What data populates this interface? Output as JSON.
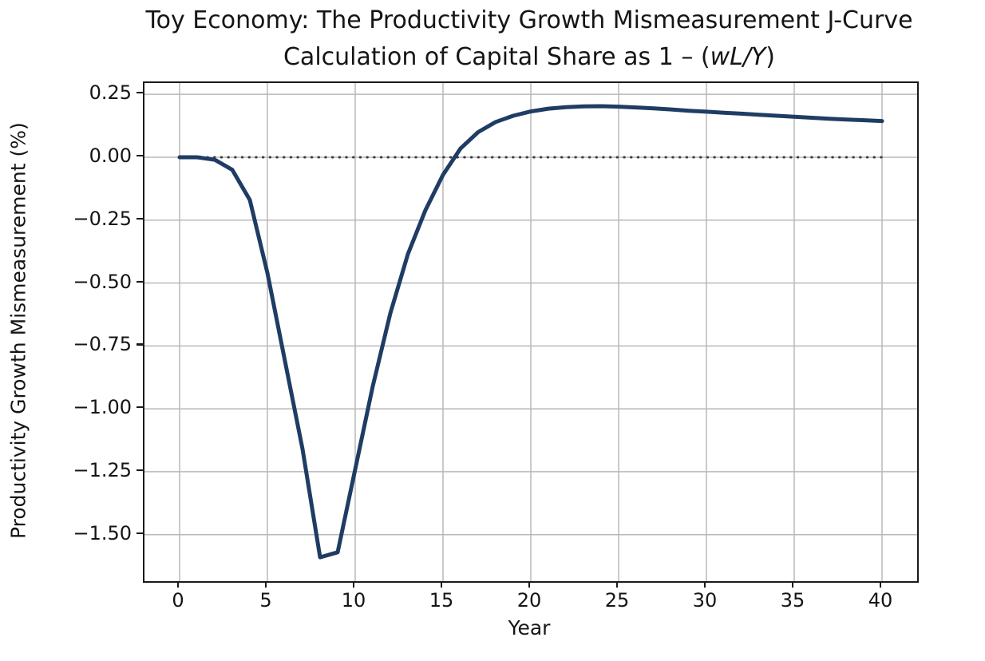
{
  "title": "Toy Economy: The Productivity Growth Mismeasurement J-Curve",
  "subtitle": {
    "prefix": "Calculation of Capital Share as 1 – (",
    "math": "wL/Y",
    "suffix": ")"
  },
  "chart_data": {
    "type": "line",
    "title": "Toy Economy: The Productivity Growth Mismeasurement J-Curve",
    "subtitle": "Calculation of Capital Share as 1 – (wL/Y)",
    "xlabel": "Year",
    "ylabel": "Productivity Growth Mismeasurement (%)",
    "xlim": [
      -2,
      42
    ],
    "ylim": [
      -1.685,
      0.295
    ],
    "grid": true,
    "legend": "none",
    "colors": {
      "curve": "#1f3c64",
      "zero_line": "#3d3d3d",
      "grid": "#b9b9b9",
      "spine": "#1a1a1a",
      "text": "#151515"
    },
    "x_ticks": [
      {
        "label": "0",
        "value": 0
      },
      {
        "label": "5",
        "value": 5
      },
      {
        "label": "10",
        "value": 10
      },
      {
        "label": "15",
        "value": 15
      },
      {
        "label": "20",
        "value": 20
      },
      {
        "label": "25",
        "value": 25
      },
      {
        "label": "30",
        "value": 30
      },
      {
        "label": "35",
        "value": 35
      },
      {
        "label": "40",
        "value": 40
      }
    ],
    "y_ticks": [
      {
        "label": "0.25",
        "value": 0.25
      },
      {
        "label": "0.00",
        "value": 0.0
      },
      {
        "label": "−0.25",
        "value": -0.25
      },
      {
        "label": "−0.50",
        "value": -0.5
      },
      {
        "label": "−0.75",
        "value": -0.75
      },
      {
        "label": "−1.00",
        "value": -1.0
      },
      {
        "label": "−1.25",
        "value": -1.25
      },
      {
        "label": "−1.50",
        "value": -1.5
      }
    ],
    "series": [
      {
        "name": "productivity-growth-mismeasurement",
        "style": "solid",
        "x": [
          0,
          1,
          2,
          3,
          4,
          5,
          6,
          7,
          8,
          9,
          10,
          11,
          12,
          13,
          14,
          15,
          16,
          17,
          18,
          19,
          20,
          21,
          22,
          23,
          24,
          25,
          26,
          27,
          28,
          29,
          30,
          31,
          32,
          33,
          34,
          35,
          36,
          37,
          38,
          39,
          40
        ],
        "y": [
          0.0,
          0.0,
          -0.01,
          -0.05,
          -0.17,
          -0.46,
          -0.81,
          -1.16,
          -1.59,
          -1.57,
          -1.24,
          -0.91,
          -0.62,
          -0.385,
          -0.21,
          -0.07,
          0.035,
          0.1,
          0.14,
          0.165,
          0.182,
          0.193,
          0.199,
          0.202,
          0.203,
          0.201,
          0.198,
          0.194,
          0.19,
          0.185,
          0.181,
          0.177,
          0.173,
          0.169,
          0.165,
          0.161,
          0.157,
          0.153,
          0.15,
          0.147,
          0.144
        ]
      },
      {
        "name": "zero-reference-line",
        "style": "dotted",
        "x_span": [
          0,
          40
        ],
        "y_const": 0.0
      }
    ]
  }
}
